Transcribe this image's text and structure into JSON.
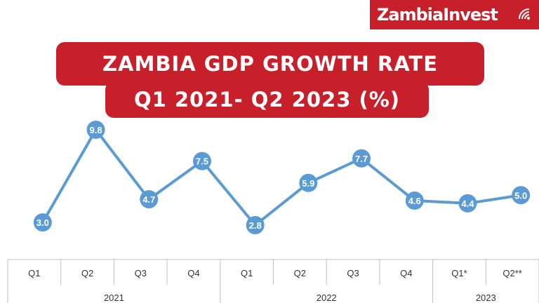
{
  "brand": {
    "logo_text": "ZambiaInvest",
    "color": "#c8202b"
  },
  "header": {
    "title_line1": "ZAMBIA GDP GROWTH RATE",
    "title_line2": "Q1 2021- Q2 2023 (%)"
  },
  "chart_data": {
    "type": "line",
    "title": "ZAMBIA GDP GROWTH RATE Q1 2021- Q2 2023 (%)",
    "categories": [
      "Q1",
      "Q2",
      "Q3",
      "Q4",
      "Q1",
      "Q2",
      "Q3",
      "Q4",
      "Q1*",
      "Q2**"
    ],
    "groups": [
      {
        "label": "2021",
        "span": 4
      },
      {
        "label": "2022",
        "span": 4
      },
      {
        "label": "2023",
        "span": 2
      }
    ],
    "series": [
      {
        "values": [
          3.0,
          9.8,
          4.7,
          7.5,
          2.8,
          5.9,
          7.7,
          4.6,
          4.4,
          5.0
        ]
      }
    ],
    "data_labels": [
      "3.0",
      "9.8",
      "4.7",
      "7.5",
      "2.8",
      "5.9",
      "7.7",
      "4.6",
      "4.4",
      "5.0"
    ],
    "ylim": [
      2.8,
      9.8
    ],
    "line_color": "#5b9bd5",
    "grid": false
  }
}
